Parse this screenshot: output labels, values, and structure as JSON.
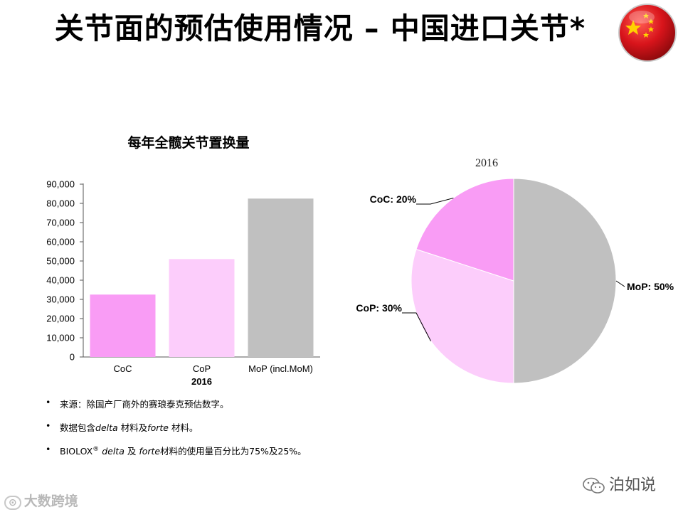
{
  "slide": {
    "title": "关节面的预估使用情况 – 中国进口关节*"
  },
  "chart_data": [
    {
      "type": "bar",
      "title": "每年全髋关节置换量",
      "categories": [
        "CoC",
        "CoP",
        "MoP (incl.MoM)"
      ],
      "values": [
        32500,
        51000,
        82500
      ],
      "xlabel": "2016",
      "ylabel": "",
      "ylim": [
        0,
        90000
      ],
      "yticks": [
        "0",
        "10,000",
        "20,000",
        "30,000",
        "40,000",
        "50,000",
        "60,000",
        "70,000",
        "80,000",
        "90,000"
      ],
      "colors": [
        "#f99cf5",
        "#fccdfb",
        "#c0c0c0"
      ],
      "grid": false
    },
    {
      "type": "pie",
      "title": "2016",
      "slices": [
        {
          "label": "MoP: 50%",
          "value": 50,
          "color": "#c0c0c0"
        },
        {
          "label": "CoP: 30%",
          "value": 30,
          "color": "#fccdfb"
        },
        {
          "label": "CoC: 20%",
          "value": 20,
          "color": "#f99cf5"
        }
      ]
    }
  ],
  "notes": {
    "bullet": "•",
    "n1": "来源：除国产厂商外的赛琅泰克预估数字。",
    "n2_a": "数据包含",
    "n2_delta": "delta",
    "n2_b": " 材料及",
    "n2_forte": "forte",
    "n2_c": " 材料。",
    "n3_a": "BIOLOX",
    "n3_reg": "®",
    "n3_delta": " delta",
    "n3_b": " 及 ",
    "n3_forte": "forte",
    "n3_c": "材料的使用量百分比为75%及25%。"
  },
  "watermark": {
    "right": "泊如说",
    "left": "大数跨境"
  },
  "colors": {
    "flag_red": "#d8141b",
    "flag_star": "#ffd200"
  }
}
